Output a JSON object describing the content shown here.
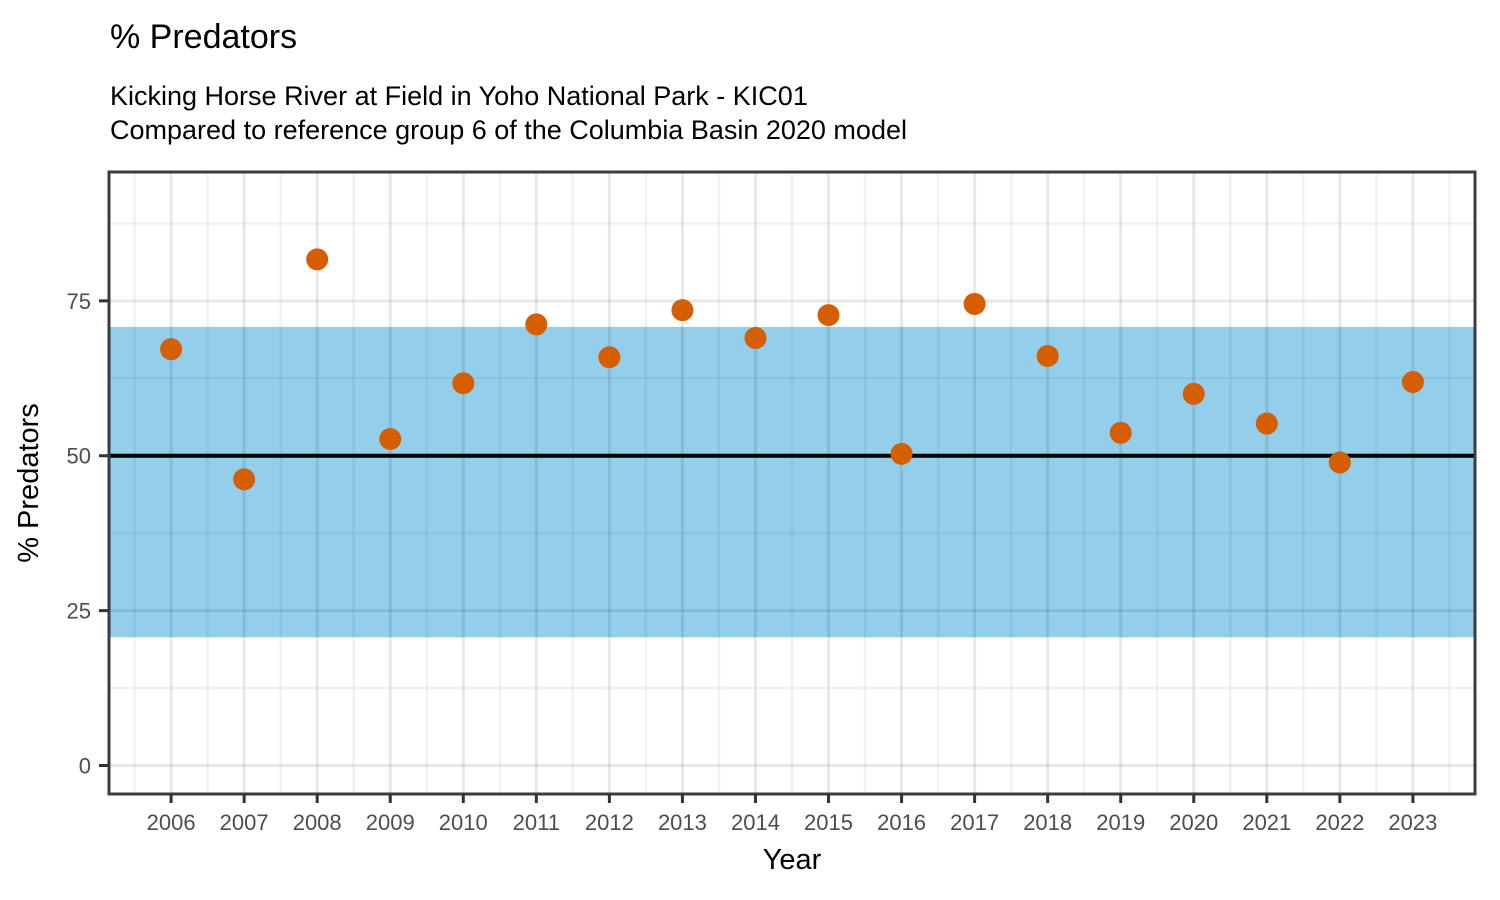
{
  "header": {
    "title": "% Predators",
    "subtitle_lines": [
      "Kicking Horse River at Field in Yoho National Park - KIC01",
      "Compared to reference group 6 of the Columbia Basin 2020 model"
    ]
  },
  "chart_data": {
    "type": "scatter",
    "title": "% Predators",
    "subtitle": "Kicking Horse River at Field in Yoho National Park - KIC01 / Compared to reference group 6 of the Columbia Basin 2020 model",
    "xlabel": "Year",
    "ylabel": "% Predators",
    "x": [
      2006,
      2007,
      2008,
      2009,
      2010,
      2011,
      2012,
      2013,
      2014,
      2015,
      2016,
      2017,
      2018,
      2019,
      2020,
      2021,
      2022,
      2023
    ],
    "y": [
      67.2,
      46.2,
      81.7,
      52.7,
      61.7,
      71.2,
      65.9,
      73.5,
      69.0,
      72.7,
      50.3,
      74.5,
      66.1,
      53.7,
      60.0,
      55.2,
      48.9,
      61.9
    ],
    "x_ticks": [
      2006,
      2007,
      2008,
      2009,
      2010,
      2011,
      2012,
      2013,
      2014,
      2015,
      2016,
      2017,
      2018,
      2019,
      2020,
      2021,
      2022,
      2023
    ],
    "y_ticks": [
      0,
      25,
      50,
      75
    ],
    "xlim": [
      2005.15,
      2023.85
    ],
    "ylim": [
      -4.6,
      95.8
    ],
    "grid": "major+minor",
    "legend": "none",
    "reference_band": {
      "low": 20.7,
      "high": 70.8,
      "color": "#93CFEB"
    },
    "reference_line": {
      "value": 50,
      "color": "#000000"
    },
    "point_color": "#D55E00"
  },
  "colors": {
    "background": "#FFFFFF",
    "panel_border": "#3C3C3C",
    "tick_mark": "#333333",
    "tick_label": "#4D4D4D",
    "grid_major": "rgba(0,0,0,0.09)",
    "grid_minor": "rgba(0,0,0,0.05)"
  }
}
